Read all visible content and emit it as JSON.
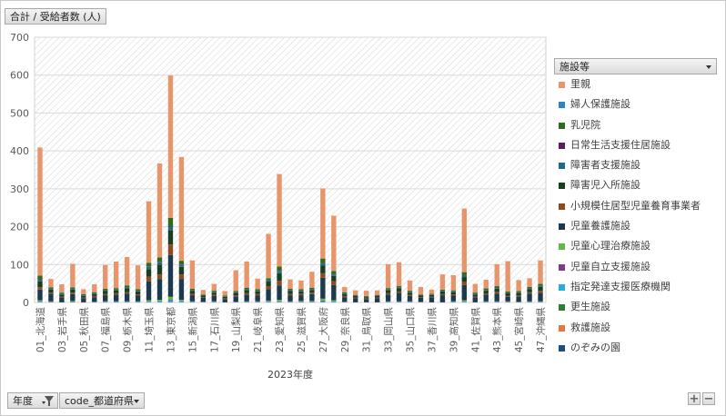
{
  "value_field": {
    "label": "合計 / 受給者数 (人)"
  },
  "filters": {
    "year_label": "年度",
    "pref_label": "code_都道府県"
  },
  "legend_field": {
    "label": "施設等"
  },
  "zoom": {
    "plus": "+",
    "minus": "−"
  },
  "colors": {
    "satooya": "#E8956B",
    "fujin": "#2E86C1",
    "nyuji": "#2E6B1F",
    "nichijo": "#5B1F5E",
    "shogaisha": "#1F6A8C",
    "shogaiji": "#1A3E1F",
    "shokibo": "#8C4A1F",
    "yogo": "#1B3A4F",
    "shinri": "#62B846",
    "jiritsu": "#7A3D8C",
    "shitei": "#25AEDA",
    "kosei": "#2E7D34",
    "kyugo": "#E07A3A",
    "nozomi": "#1F4E79"
  },
  "chart_data": {
    "type": "bar",
    "stacked": true,
    "title": "",
    "xlabel": "2023年度",
    "ylabel": "",
    "ylim": [
      0,
      700
    ],
    "yticks": [
      0,
      100,
      200,
      300,
      400,
      500,
      600,
      700
    ],
    "grid": true,
    "legend_position": "right",
    "categories": [
      "01_北海道",
      "02_青森県",
      "03_岩手県",
      "04_宮城県",
      "05_秋田県",
      "06_山形県",
      "07_福島県",
      "08_茨城県",
      "09_栃木県",
      "10_群馬県",
      "11_埼玉県",
      "12_千葉県",
      "13_東京都",
      "14_神奈川県",
      "15_新潟県",
      "16_富山県",
      "17_石川県",
      "18_福井県",
      "19_山梨県",
      "20_長野県",
      "21_岐阜県",
      "22_静岡県",
      "23_愛知県",
      "24_三重県",
      "25_滋賀県",
      "26_京都府",
      "27_大阪府",
      "28_兵庫県",
      "29_奈良県",
      "30_和歌山県",
      "31_鳥取県",
      "32_島根県",
      "33_岡山県",
      "34_広島県",
      "35_山口県",
      "36_徳島県",
      "37_香川県",
      "38_愛媛県",
      "39_高知県",
      "40_福岡県",
      "41_佐賀県",
      "42_長崎県",
      "43_熊本県",
      "44_大分県",
      "45_宮崎県",
      "46_鹿児島県",
      "47_沖縄県"
    ],
    "xtick_labels": [
      "01_北海道",
      "",
      "03_岩手県",
      "",
      "05_秋田県",
      "",
      "07_福島県",
      "",
      "09_栃木県",
      "",
      "11_埼玉県",
      "",
      "13_東京都",
      "",
      "15_新潟県",
      "",
      "17_石川県",
      "",
      "19_山梨県",
      "",
      "21_岐阜県",
      "",
      "23_愛知県",
      "",
      "25_滋賀県",
      "",
      "27_大阪府",
      "",
      "29_奈良県",
      "",
      "31_鳥取県",
      "",
      "33_岡山県",
      "",
      "35_山口県",
      "",
      "37_香川県",
      "",
      "39_高知県",
      "",
      "41_佐賀県",
      "",
      "43_熊本県",
      "",
      "45_宮崎県",
      "",
      "47_沖縄県"
    ],
    "series": [
      {
        "name": "のぞみの園",
        "color_key": "nozomi",
        "values": [
          0,
          0,
          0,
          0,
          0,
          0,
          0,
          0,
          0,
          0,
          0,
          0,
          0,
          0,
          0,
          0,
          0,
          0,
          0,
          0,
          0,
          0,
          0,
          0,
          0,
          0,
          0,
          0,
          0,
          0,
          0,
          0,
          0,
          0,
          0,
          0,
          0,
          0,
          0,
          0,
          0,
          0,
          0,
          0,
          0,
          0,
          0
        ]
      },
      {
        "name": "救護施設",
        "color_key": "kyugo",
        "values": [
          0,
          0,
          0,
          0,
          0,
          0,
          0,
          0,
          0,
          0,
          0,
          0,
          0,
          0,
          0,
          0,
          0,
          0,
          0,
          0,
          0,
          0,
          0,
          0,
          0,
          0,
          0,
          0,
          0,
          0,
          0,
          0,
          0,
          0,
          0,
          0,
          0,
          0,
          0,
          0,
          0,
          0,
          0,
          0,
          0,
          0,
          0
        ]
      },
      {
        "name": "更生施設",
        "color_key": "kosei",
        "values": [
          0,
          0,
          0,
          0,
          0,
          0,
          0,
          0,
          0,
          0,
          0,
          0,
          0,
          0,
          0,
          0,
          0,
          0,
          0,
          0,
          0,
          0,
          0,
          0,
          0,
          0,
          0,
          0,
          0,
          0,
          0,
          0,
          0,
          0,
          0,
          0,
          0,
          0,
          0,
          0,
          0,
          0,
          0,
          0,
          0,
          0,
          0
        ]
      },
      {
        "name": "指定発達支援医療機関",
        "color_key": "shitei",
        "values": [
          2,
          1,
          0,
          1,
          0,
          1,
          1,
          1,
          1,
          1,
          2,
          3,
          5,
          3,
          1,
          1,
          1,
          0,
          1,
          1,
          1,
          2,
          2,
          1,
          1,
          1,
          3,
          2,
          1,
          0,
          0,
          0,
          1,
          1,
          1,
          0,
          0,
          0,
          1,
          2,
          0,
          1,
          1,
          1,
          1,
          1,
          1
        ]
      },
      {
        "name": "児童自立支援施設",
        "color_key": "jiritsu",
        "values": [
          1,
          1,
          1,
          1,
          1,
          1,
          1,
          1,
          1,
          1,
          1,
          1,
          2,
          1,
          1,
          1,
          1,
          1,
          1,
          1,
          1,
          1,
          1,
          1,
          1,
          1,
          2,
          1,
          1,
          1,
          1,
          1,
          1,
          1,
          1,
          1,
          1,
          1,
          1,
          1,
          1,
          1,
          1,
          1,
          1,
          1,
          1
        ]
      },
      {
        "name": "児童心理治療施設",
        "color_key": "shinri",
        "values": [
          3,
          1,
          0,
          2,
          0,
          0,
          1,
          1,
          1,
          1,
          3,
          3,
          8,
          3,
          1,
          0,
          1,
          0,
          0,
          1,
          1,
          2,
          4,
          1,
          2,
          2,
          5,
          3,
          0,
          0,
          0,
          0,
          1,
          1,
          1,
          1,
          0,
          0,
          1,
          3,
          0,
          1,
          1,
          1,
          0,
          1,
          1
        ]
      },
      {
        "name": "児童養護施設",
        "color_key": "yogo",
        "values": [
          28,
          20,
          12,
          18,
          10,
          12,
          16,
          18,
          20,
          15,
          50,
          55,
          110,
          55,
          16,
          10,
          14,
          8,
          14,
          18,
          15,
          30,
          38,
          16,
          15,
          18,
          55,
          40,
          12,
          10,
          8,
          10,
          18,
          22,
          14,
          10,
          12,
          18,
          15,
          40,
          12,
          18,
          20,
          12,
          14,
          20,
          22
        ]
      },
      {
        "name": "小規模住居型児童養育事業者",
        "color_key": "shokibo",
        "values": [
          6,
          3,
          2,
          4,
          2,
          3,
          3,
          4,
          4,
          3,
          12,
          12,
          28,
          12,
          4,
          2,
          3,
          2,
          3,
          4,
          4,
          8,
          12,
          3,
          4,
          4,
          12,
          10,
          3,
          2,
          2,
          2,
          4,
          4,
          3,
          2,
          2,
          3,
          3,
          9,
          2,
          3,
          5,
          3,
          3,
          4,
          6
        ]
      },
      {
        "name": "障害児入所施設",
        "color_key": "shogaiji",
        "values": [
          16,
          8,
          6,
          8,
          4,
          5,
          8,
          7,
          10,
          8,
          20,
          26,
          38,
          20,
          7,
          4,
          6,
          4,
          6,
          8,
          7,
          12,
          20,
          8,
          6,
          7,
          20,
          14,
          5,
          4,
          3,
          4,
          7,
          8,
          6,
          4,
          5,
          7,
          6,
          12,
          6,
          7,
          8,
          6,
          6,
          8,
          10
        ]
      },
      {
        "name": "障害者支援施設",
        "color_key": "shogaisha",
        "values": [
          4,
          2,
          2,
          2,
          2,
          2,
          2,
          2,
          3,
          2,
          6,
          6,
          8,
          5,
          2,
          1,
          2,
          1,
          2,
          2,
          2,
          3,
          5,
          2,
          2,
          2,
          6,
          4,
          2,
          1,
          1,
          1,
          2,
          2,
          2,
          1,
          1,
          2,
          2,
          4,
          2,
          2,
          2,
          2,
          2,
          2,
          3
        ]
      },
      {
        "name": "日常生活支援住居施設",
        "color_key": "nichijo",
        "values": [
          1,
          0,
          0,
          0,
          0,
          0,
          0,
          0,
          0,
          0,
          1,
          1,
          2,
          1,
          0,
          0,
          0,
          0,
          0,
          0,
          0,
          0,
          1,
          0,
          0,
          0,
          1,
          1,
          0,
          0,
          0,
          0,
          0,
          0,
          0,
          0,
          0,
          0,
          0,
          1,
          0,
          0,
          0,
          0,
          0,
          0,
          0
        ]
      },
      {
        "name": "乳児院",
        "color_key": "nyuji",
        "values": [
          10,
          4,
          3,
          4,
          3,
          3,
          4,
          4,
          5,
          4,
          10,
          12,
          22,
          10,
          4,
          2,
          3,
          2,
          3,
          4,
          4,
          6,
          12,
          4,
          4,
          4,
          12,
          8,
          3,
          2,
          2,
          2,
          4,
          4,
          3,
          2,
          2,
          3,
          3,
          8,
          3,
          4,
          5,
          3,
          3,
          4,
          5
        ]
      },
      {
        "name": "婦人保護施設",
        "color_key": "fujin",
        "values": [
          0,
          0,
          0,
          0,
          0,
          0,
          0,
          0,
          0,
          0,
          0,
          0,
          0,
          0,
          0,
          0,
          0,
          0,
          0,
          0,
          0,
          0,
          0,
          0,
          0,
          0,
          0,
          0,
          0,
          0,
          0,
          0,
          0,
          0,
          0,
          0,
          0,
          0,
          0,
          0,
          0,
          0,
          0,
          0,
          0,
          0,
          0
        ]
      },
      {
        "name": "里親",
        "color_key": "satooya",
        "values": [
          338,
          22,
          22,
          62,
          13,
          21,
          63,
          70,
          75,
          63,
          162,
          248,
          376,
          274,
          75,
          12,
          18,
          12,
          55,
          69,
          28,
          117,
          244,
          25,
          23,
          42,
          185,
          146,
          14,
          12,
          14,
          12,
          63,
          63,
          27,
          20,
          11,
          40,
          40,
          168,
          23,
          23,
          58,
          80,
          29,
          23,
          62
        ]
      }
    ]
  },
  "legend_order": [
    "里親",
    "婦人保護施設",
    "乳児院",
    "日常生活支援住居施設",
    "障害者支援施設",
    "障害児入所施設",
    "小規模住居型児童養育事業者",
    "児童養護施設",
    "児童心理治療施設",
    "児童自立支援施設",
    "指定発達支援医療機関",
    "更生施設",
    "救護施設",
    "のぞみの園"
  ]
}
